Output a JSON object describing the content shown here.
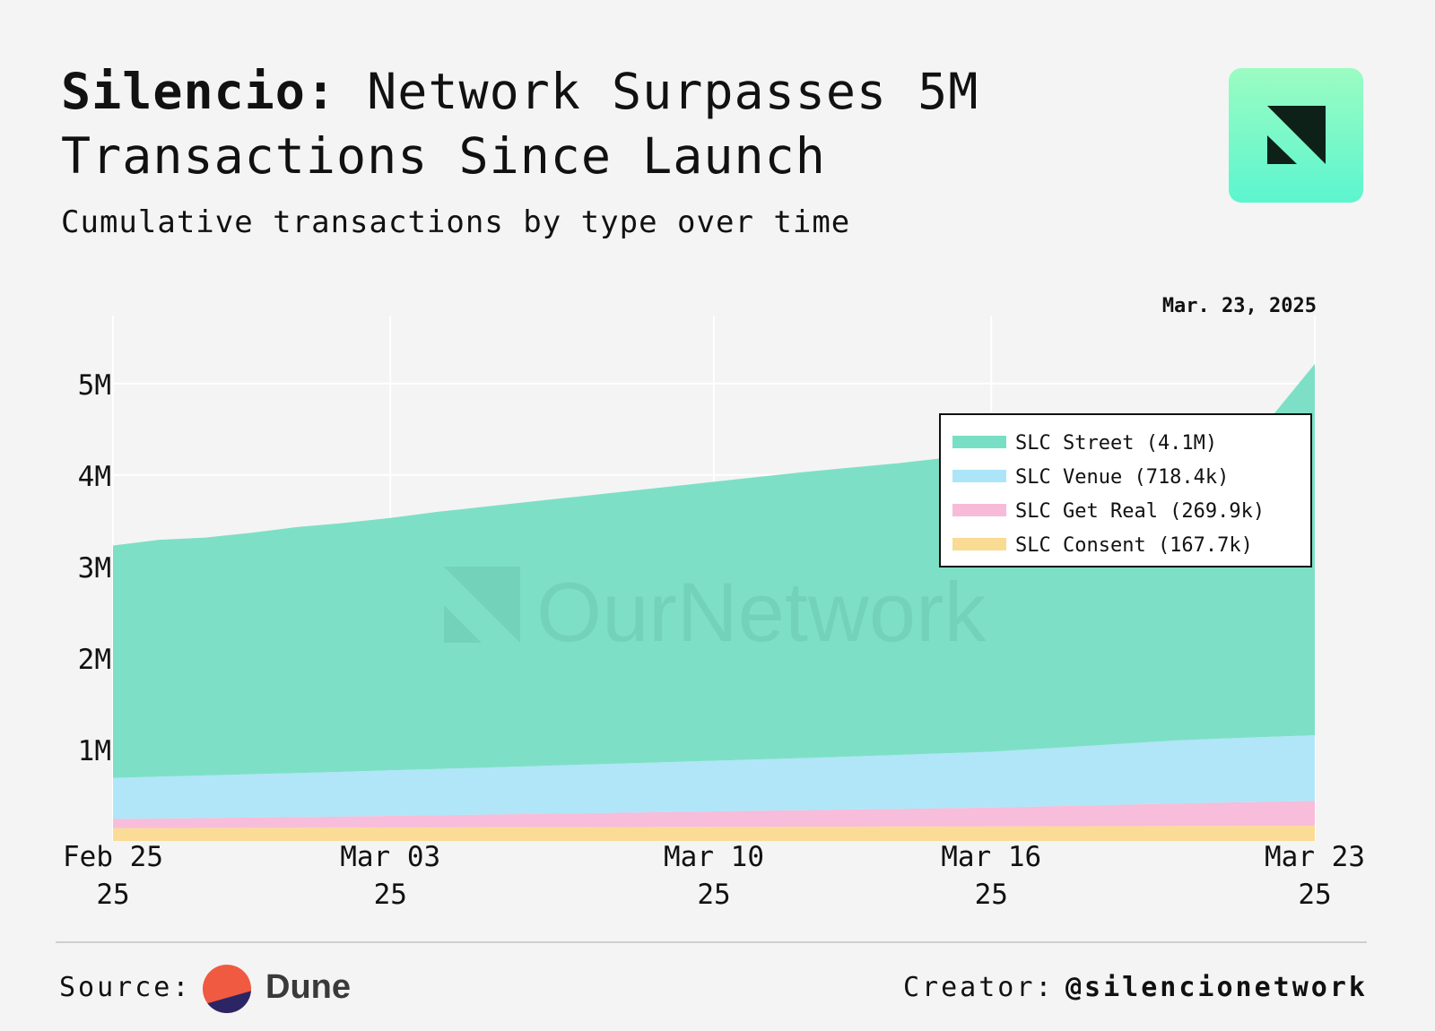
{
  "header": {
    "title_strong": "Silencio:",
    "title_rest": " Network Surpasses 5M Transactions Since Launch",
    "subtitle": "Cumulative transactions by type over time"
  },
  "footer": {
    "source_label": "Source:",
    "source_name": "Dune",
    "creator_label": "Creator:",
    "creator_handle": "@silencionetwork"
  },
  "watermark": "OurNetwork",
  "colors": {
    "street": "#79dfc4",
    "venue": "#ade5f8",
    "get_real": "#f7bbd9",
    "consent": "#fadb94",
    "logo_gradient_top": "#9bfcc2",
    "logo_gradient_bottom": "#5cf5cf",
    "logo_mark": "#0d2118",
    "dune_orange": "#f05a40",
    "dune_navy": "#2c2565"
  },
  "chart_data": {
    "type": "area",
    "stacked": true,
    "date_label": "Mar. 23, 2025",
    "x": [
      "2025-02-25",
      "2025-02-26",
      "2025-02-27",
      "2025-02-28",
      "2025-03-01",
      "2025-03-02",
      "2025-03-03",
      "2025-03-04",
      "2025-03-05",
      "2025-03-06",
      "2025-03-07",
      "2025-03-08",
      "2025-03-09",
      "2025-03-10",
      "2025-03-11",
      "2025-03-12",
      "2025-03-13",
      "2025-03-14",
      "2025-03-15",
      "2025-03-16",
      "2025-03-17",
      "2025-03-18",
      "2025-03-19",
      "2025-03-20",
      "2025-03-21",
      "2025-03-22",
      "2025-03-23"
    ],
    "x_ticks": [
      {
        "date": "2025-02-25",
        "line1": "Feb 25",
        "line2": "25"
      },
      {
        "date": "2025-03-03",
        "line1": "Mar 03",
        "line2": "25"
      },
      {
        "date": "2025-03-10",
        "line1": "Mar 10",
        "line2": "25"
      },
      {
        "date": "2025-03-16",
        "line1": "Mar 16",
        "line2": "25"
      },
      {
        "date": "2025-03-23",
        "line1": "Mar 23",
        "line2": "25"
      }
    ],
    "y_ticks": [
      {
        "value": 1000000,
        "label": "1M"
      },
      {
        "value": 2000000,
        "label": "2M"
      },
      {
        "value": 3000000,
        "label": "3M"
      },
      {
        "value": 4000000,
        "label": "4M"
      },
      {
        "value": 5000000,
        "label": "5M"
      }
    ],
    "ylim": [
      0,
      5450000
    ],
    "grid": true,
    "legend_position": "top-right",
    "series": [
      {
        "key": "consent",
        "name": "SLC Consent (167.7k)",
        "values": [
          140000,
          141000,
          143000,
          144000,
          145000,
          146000,
          147000,
          148000,
          149000,
          150000,
          151000,
          152000,
          153000,
          154000,
          155000,
          156000,
          157000,
          158000,
          159000,
          160000,
          161000,
          162000,
          163000,
          164000,
          165000,
          166000,
          167700
        ]
      },
      {
        "key": "get_real",
        "name": "SLC Get Real (269.9k)",
        "values": [
          100000,
          104000,
          108000,
          112000,
          116000,
          121000,
          127000,
          133000,
          139000,
          145000,
          151000,
          157000,
          163000,
          169000,
          175000,
          181000,
          187000,
          193000,
          199000,
          205000,
          215000,
          225000,
          235000,
          245000,
          255000,
          262000,
          269900
        ]
      },
      {
        "key": "venue",
        "name": "SLC Venue (718.4k)",
        "values": [
          450000,
          458000,
          466000,
          474000,
          482000,
          490000,
          498000,
          506000,
          514000,
          522000,
          530000,
          538000,
          546000,
          554000,
          562000,
          570000,
          580000,
          590000,
          600000,
          610000,
          630000,
          650000,
          670000,
          690000,
          700000,
          710000,
          718400
        ]
      },
      {
        "key": "street",
        "name": "SLC Street (4.1M)",
        "values": [
          2540000,
          2590000,
          2600000,
          2640000,
          2690000,
          2720000,
          2760000,
          2810000,
          2850000,
          2890000,
          2930000,
          2970000,
          3010000,
          3050000,
          3090000,
          3130000,
          3160000,
          3190000,
          3230000,
          3260000,
          3290000,
          3320000,
          3350000,
          3380000,
          3420000,
          3460000,
          4060000
        ]
      }
    ],
    "legend_order": [
      "street",
      "venue",
      "get_real",
      "consent"
    ]
  }
}
